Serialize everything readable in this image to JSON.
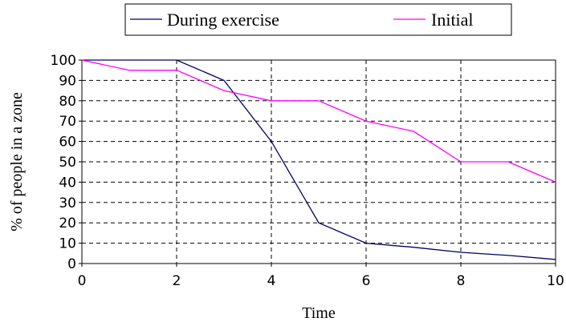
{
  "chart_data": {
    "type": "line",
    "x": [
      0,
      1,
      2,
      3,
      4,
      5,
      6,
      7,
      8,
      9,
      10
    ],
    "series": [
      {
        "name": "During exercise",
        "color": "#000066",
        "values": [
          100,
          100,
          100,
          90,
          60,
          20,
          10,
          8,
          5.5,
          4,
          2
        ]
      },
      {
        "name": "Initial",
        "color": "#ff00ff",
        "values": [
          100,
          95,
          95,
          85,
          80,
          80,
          70,
          65,
          50,
          50,
          40
        ]
      }
    ],
    "xlabel": "Time",
    "ylabel": "% of people in a zone",
    "xlim": [
      0,
      10
    ],
    "ylim": [
      0,
      100
    ],
    "x_ticks": [
      0,
      2,
      4,
      6,
      8,
      10
    ],
    "y_ticks": [
      0,
      10,
      20,
      30,
      40,
      50,
      60,
      70,
      80,
      90,
      100
    ],
    "grid": true,
    "legend_position": "top"
  }
}
